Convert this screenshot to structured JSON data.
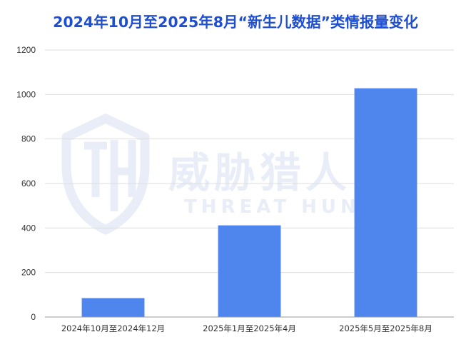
{
  "title": "2024年10月至2025年8月“新生儿数据”类情报量变化",
  "watermark": {
    "logo_text": "威胁猎人",
    "logo_subtext": "THREAT HUNTER"
  },
  "colors": {
    "title": "#1f4fd1",
    "bar": "#4f86ee",
    "grid": "#dddddd",
    "axis": "#999999",
    "watermark": "#e8edf7"
  },
  "chart_data": {
    "type": "bar",
    "title": "2024年10月至2025年8月“新生儿数据”类情报量变化",
    "xlabel": "",
    "ylabel": "",
    "categories": [
      "2024年10月至2024年12月",
      "2025年1月至2025年4月",
      "2025年5月至2025年8月"
    ],
    "values": [
      85,
      412,
      1028
    ],
    "ylim": [
      0,
      1200
    ],
    "yticks": [
      0,
      200,
      400,
      600,
      800,
      1000,
      1200
    ],
    "grid": true,
    "legend": "none"
  }
}
